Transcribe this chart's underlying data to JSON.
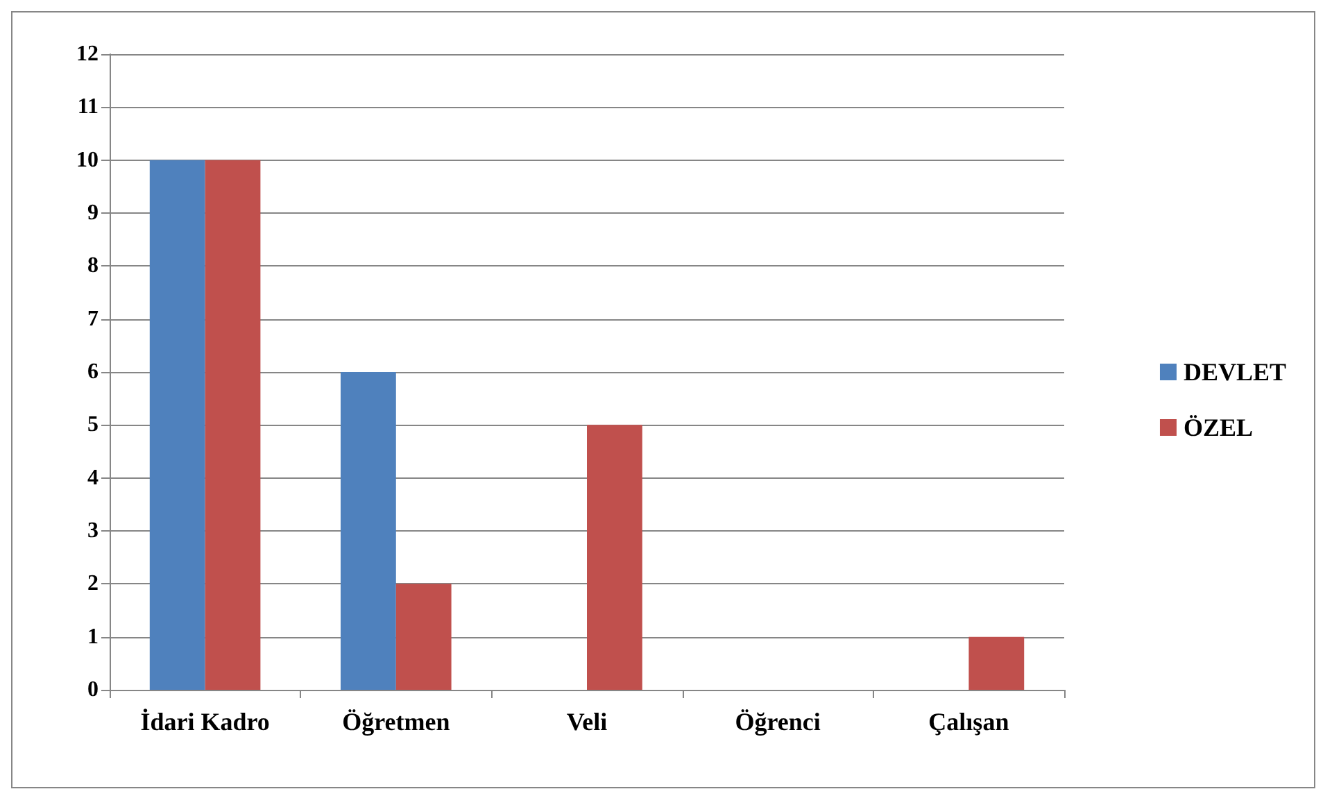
{
  "chart_data": {
    "type": "bar",
    "categories": [
      "İdari Kadro",
      "Öğretmen",
      "Veli",
      "Öğrenci",
      "Çalışan"
    ],
    "series": [
      {
        "name": "DEVLET",
        "color": "#4f81bd",
        "values": [
          10,
          6,
          0,
          0,
          0
        ]
      },
      {
        "name": "ÖZEL",
        "color": "#c0504d",
        "values": [
          10,
          2,
          5,
          0,
          1
        ]
      }
    ],
    "ylim": [
      0,
      12
    ],
    "yticks": [
      0,
      1,
      2,
      3,
      4,
      5,
      6,
      7,
      8,
      9,
      10,
      11,
      12
    ],
    "grid": "y",
    "legend": "right"
  }
}
